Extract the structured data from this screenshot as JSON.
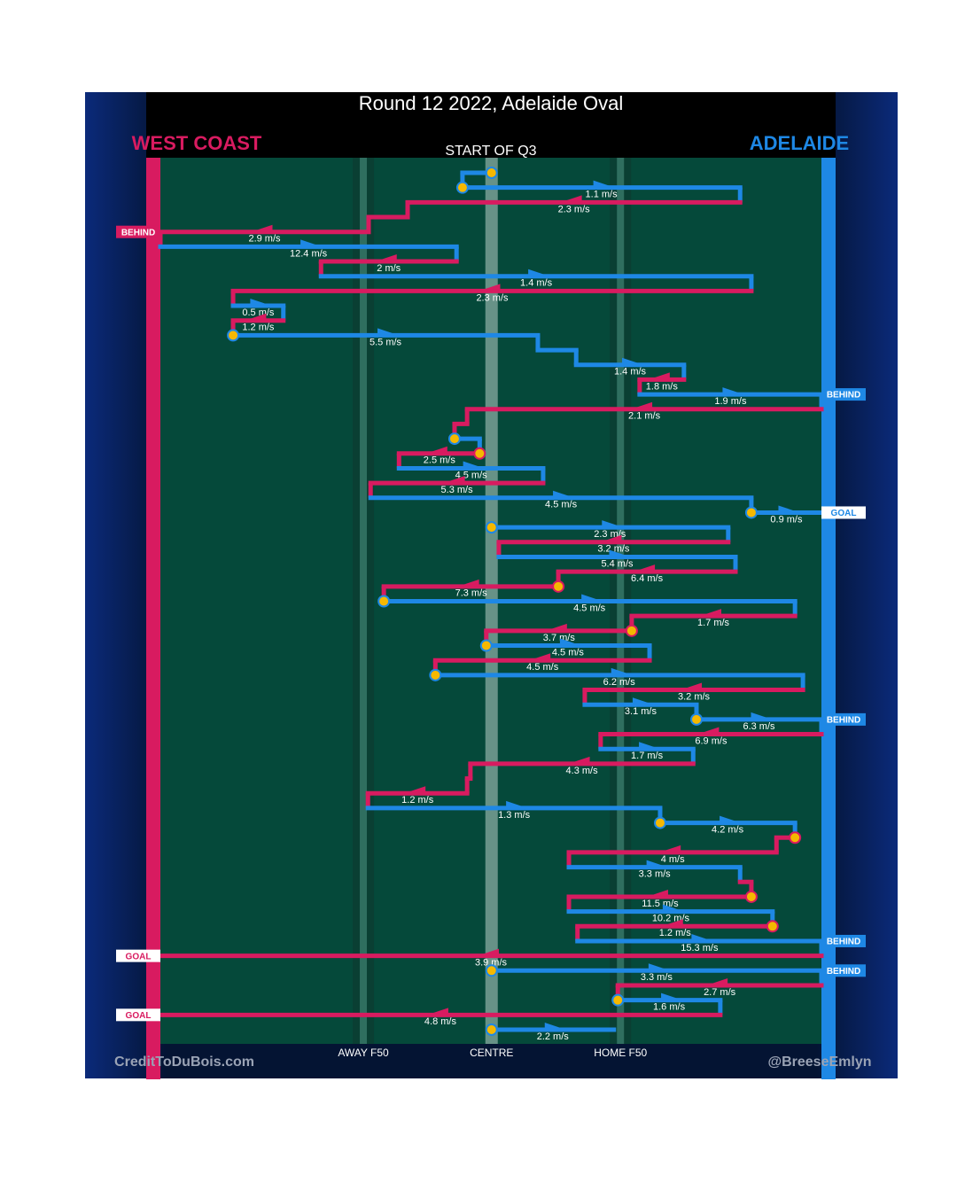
{
  "chart_data": {
    "type": "possession-flow",
    "title": "Round 12 2022, Adelaide Oval",
    "subtitle": "START OF Q3",
    "credit_left": "CreditToDuBois.com",
    "credit_right": "@BreeseEmlyn",
    "teams": [
      {
        "name": "WEST COAST",
        "color": "#d81b60"
      },
      {
        "name": "ADELAIDE",
        "color": "#1e88e5"
      }
    ],
    "stoppage_color": "#f5b800",
    "xlim": [
      0,
      100
    ],
    "zones": [
      {
        "label": "AWAY F50",
        "x": 30.7
      },
      {
        "label": "CENTRE",
        "x": 50.1
      },
      {
        "label": "HOME F50",
        "x": 69.6
      }
    ],
    "segments": [
      {
        "team": 1,
        "from": 50.1,
        "to": 45.7,
        "stoppage": true
      },
      {
        "team": 1,
        "from": 45.7,
        "to": 87.7,
        "speed": 1.1,
        "speed_label": "1.1 m/s",
        "stoppage": true
      },
      {
        "team": 0,
        "from": 87.7,
        "to": 37.4,
        "speed": 2.3,
        "speed_label": "2.3 m/s"
      },
      {
        "team": 0,
        "from": 37.4,
        "to": 31.5
      },
      {
        "team": 0,
        "from": 31.5,
        "to": 0,
        "speed": 2.9,
        "speed_label": "2.9 m/s",
        "result": "BEHIND"
      },
      {
        "team": 1,
        "from": 0,
        "to": 44.8,
        "speed": 12.4,
        "speed_label": "12.4 m/s"
      },
      {
        "team": 0,
        "from": 44.8,
        "to": 24.3,
        "speed": 2,
        "speed_label": "2 m/s"
      },
      {
        "team": 1,
        "from": 24.3,
        "to": 89.4,
        "speed": 1.4,
        "speed_label": "1.4 m/s"
      },
      {
        "team": 0,
        "from": 89.4,
        "to": 11,
        "speed": 2.3,
        "speed_label": "2.3 m/s"
      },
      {
        "team": 1,
        "from": 11,
        "to": 18.6,
        "speed": 0.5,
        "speed_label": "0.5 m/s"
      },
      {
        "team": 0,
        "from": 18.6,
        "to": 11,
        "speed": 1.2,
        "speed_label": "1.2 m/s"
      },
      {
        "team": 1,
        "from": 11,
        "to": 57.1,
        "speed": 5.5,
        "speed_label": "5.5 m/s",
        "stoppage": true
      },
      {
        "team": 1,
        "from": 57.1,
        "to": 62.9
      },
      {
        "team": 1,
        "from": 62.9,
        "to": 79.2,
        "speed": 1.4,
        "speed_label": "1.4 m/s"
      },
      {
        "team": 0,
        "from": 79.2,
        "to": 72.5,
        "speed": 1.8,
        "speed_label": "1.8 m/s"
      },
      {
        "team": 1,
        "from": 72.5,
        "to": 100,
        "speed": 1.9,
        "speed_label": "1.9 m/s",
        "result": "BEHIND"
      },
      {
        "team": 0,
        "from": 100,
        "to": 46.4,
        "speed": 2.1,
        "speed_label": "2.1 m/s"
      },
      {
        "team": 0,
        "from": 46.4,
        "to": 44.5
      },
      {
        "team": 1,
        "from": 44.5,
        "to": 48.3,
        "stoppage": true
      },
      {
        "team": 0,
        "from": 48.3,
        "to": 36.1,
        "speed": 2.5,
        "speed_label": "2.5 m/s",
        "stoppage": true
      },
      {
        "team": 1,
        "from": 36.1,
        "to": 57.9,
        "speed": 4.5,
        "speed_label": "4.5 m/s"
      },
      {
        "team": 0,
        "from": 57.9,
        "to": 31.8,
        "speed": 5.3,
        "speed_label": "5.3 m/s"
      },
      {
        "team": 1,
        "from": 31.8,
        "to": 89.4,
        "speed": 4.5,
        "speed_label": "4.5 m/s"
      },
      {
        "team": 1,
        "from": 89.4,
        "to": 100,
        "speed": 0.9,
        "speed_label": "0.9 m/s",
        "stoppage": true,
        "result": "GOAL"
      },
      {
        "team": 1,
        "from": 50.1,
        "to": 85.9,
        "speed": 2.3,
        "speed_label": "2.3 m/s",
        "stoppage": true
      },
      {
        "team": 0,
        "from": 85.9,
        "to": 51.2,
        "speed": 3.2,
        "speed_label": "3.2 m/s"
      },
      {
        "team": 1,
        "from": 51.2,
        "to": 87,
        "speed": 5.4,
        "speed_label": "5.4 m/s"
      },
      {
        "team": 0,
        "from": 87,
        "to": 60.2,
        "speed": 6.4,
        "speed_label": "6.4 m/s"
      },
      {
        "team": 0,
        "from": 60.2,
        "to": 33.8,
        "speed": 7.3,
        "speed_label": "7.3 m/s",
        "stoppage": true
      },
      {
        "team": 1,
        "from": 33.8,
        "to": 96,
        "speed": 4.5,
        "speed_label": "4.5 m/s",
        "stoppage": true
      },
      {
        "team": 0,
        "from": 96,
        "to": 71.3,
        "speed": 1.7,
        "speed_label": "1.7 m/s"
      },
      {
        "team": 0,
        "from": 71.3,
        "to": 49.3,
        "speed": 3.7,
        "speed_label": "3.7 m/s",
        "stoppage": true
      },
      {
        "team": 1,
        "from": 49.3,
        "to": 74,
        "speed": 4.5,
        "speed_label": "4.5 m/s",
        "stoppage": true
      },
      {
        "team": 0,
        "from": 74,
        "to": 41.6,
        "speed": 4.5,
        "speed_label": "4.5 m/s"
      },
      {
        "team": 1,
        "from": 41.6,
        "to": 97.2,
        "speed": 6.2,
        "speed_label": "6.2 m/s",
        "stoppage": true
      },
      {
        "team": 0,
        "from": 97.2,
        "to": 64.2,
        "speed": 3.2,
        "speed_label": "3.2 m/s"
      },
      {
        "team": 1,
        "from": 64.2,
        "to": 81.1,
        "speed": 3.1,
        "speed_label": "3.1 m/s"
      },
      {
        "team": 1,
        "from": 81.1,
        "to": 100,
        "speed": 6.3,
        "speed_label": "6.3 m/s",
        "stoppage": true,
        "result": "BEHIND"
      },
      {
        "team": 0,
        "from": 100,
        "to": 66.6,
        "speed": 6.9,
        "speed_label": "6.9 m/s"
      },
      {
        "team": 1,
        "from": 66.6,
        "to": 80.6,
        "speed": 1.7,
        "speed_label": "1.7 m/s"
      },
      {
        "team": 0,
        "from": 80.6,
        "to": 46.9,
        "speed": 4.3,
        "speed_label": "4.3 m/s"
      },
      {
        "team": 0,
        "from": 46.9,
        "to": 46.4
      },
      {
        "team": 0,
        "from": 46.4,
        "to": 31.4,
        "speed": 1.2,
        "speed_label": "1.2 m/s"
      },
      {
        "team": 1,
        "from": 31.4,
        "to": 75.6,
        "speed": 1.3,
        "speed_label": "1.3 m/s"
      },
      {
        "team": 1,
        "from": 75.6,
        "to": 96,
        "speed": 4.2,
        "speed_label": "4.2 m/s",
        "stoppage": true
      },
      {
        "team": 0,
        "from": 96,
        "to": 93.2,
        "stoppage": true
      },
      {
        "team": 0,
        "from": 93.2,
        "to": 61.8,
        "speed": 4,
        "speed_label": "4 m/s"
      },
      {
        "team": 1,
        "from": 61.8,
        "to": 87.7,
        "speed": 3.3,
        "speed_label": "3.3 m/s"
      },
      {
        "team": 0,
        "from": 87.7,
        "to": 89.4
      },
      {
        "team": 0,
        "from": 89.4,
        "to": 61.8,
        "speed": 11.5,
        "speed_label": "11.5 m/s",
        "stoppage": true
      },
      {
        "team": 1,
        "from": 61.8,
        "to": 92.6,
        "speed": 10.2,
        "speed_label": "10.2 m/s"
      },
      {
        "team": 0,
        "from": 92.6,
        "to": 63.1,
        "speed": 1.2,
        "speed_label": "1.2 m/s",
        "stoppage": true
      },
      {
        "team": 1,
        "from": 63.1,
        "to": 100,
        "speed": 15.3,
        "speed_label": "15.3 m/s",
        "result": "BEHIND"
      },
      {
        "team": 0,
        "from": 100,
        "to": 0,
        "speed": 3.9,
        "speed_label": "3.9 m/s",
        "result": "GOAL"
      },
      {
        "team": 1,
        "from": 50.1,
        "to": 100,
        "speed": 3.3,
        "speed_label": "3.3 m/s",
        "stoppage": true,
        "result": "BEHIND"
      },
      {
        "team": 0,
        "from": 100,
        "to": 69.2,
        "speed": 2.7,
        "speed_label": "2.7 m/s"
      },
      {
        "team": 1,
        "from": 69.2,
        "to": 84.7,
        "speed": 1.6,
        "speed_label": "1.6 m/s",
        "stoppage": true
      },
      {
        "team": 0,
        "from": 84.7,
        "to": 0,
        "speed": 4.8,
        "speed_label": "4.8 m/s",
        "result": "GOAL"
      },
      {
        "team": 1,
        "from": 50.1,
        "to": 68.6,
        "speed": 2.2,
        "speed_label": "2.2 m/s",
        "stoppage": true
      }
    ]
  }
}
